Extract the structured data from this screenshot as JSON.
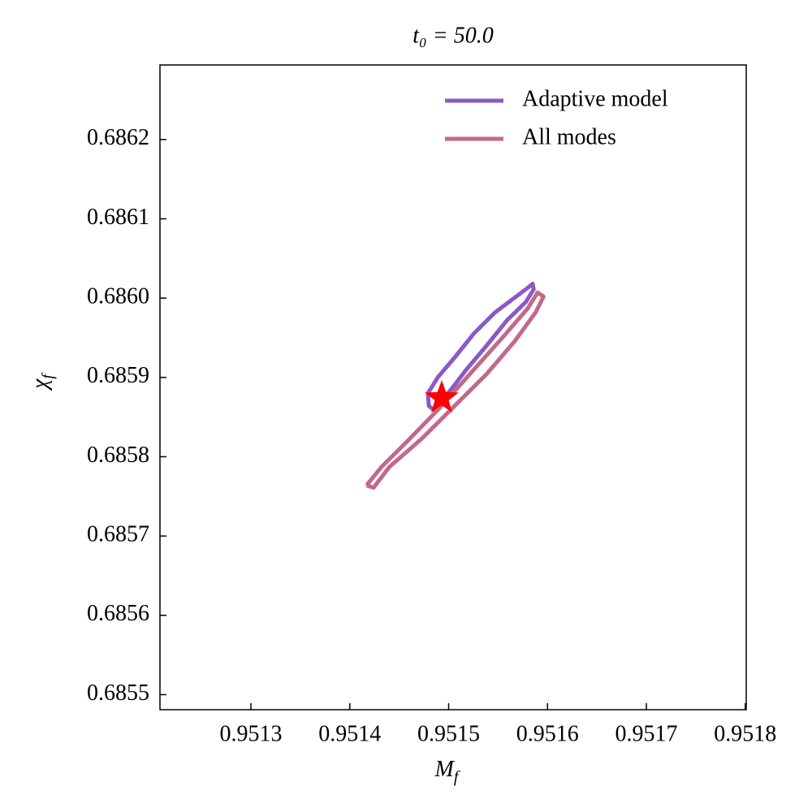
{
  "chart_data": {
    "type": "contour",
    "title": "t₀ = 50.0",
    "x_label": "M",
    "x_label_sub": "f",
    "y_label": "χ",
    "y_label_sub": "f",
    "xlim": [
      0.951208,
      0.951801
    ],
    "ylim": [
      0.685481,
      0.686294
    ],
    "xticks": [
      0.9513,
      0.9514,
      0.9515,
      0.9516,
      0.9517,
      0.9518
    ],
    "yticks": [
      0.6855,
      0.6856,
      0.6857,
      0.6858,
      0.6859,
      {
        "value": 0.686,
        "label": "0.6860"
      },
      0.6861,
      0.6862
    ],
    "legend": "upper right",
    "series": [
      {
        "name": "Adaptive model",
        "color": "#8a5ac6",
        "x": [
          0.951479,
          0.951489,
          0.951506,
          0.951526,
          0.951547,
          0.951563,
          0.95158,
          0.951585,
          0.951586,
          0.951578,
          0.951559,
          0.951539,
          0.951518,
          0.951502,
          0.951485,
          0.95148,
          0.951479
        ],
        "y": [
          0.68588,
          0.6859,
          0.685925,
          0.685956,
          0.685982,
          0.685997,
          0.686013,
          0.686018,
          0.686011,
          0.685995,
          0.685972,
          0.685941,
          0.68591,
          0.685884,
          0.685859,
          0.685864,
          0.68588
        ]
      },
      {
        "name": "All modes",
        "color": "#c2698a",
        "x": [
          0.951417,
          0.951432,
          0.951457,
          0.951489,
          0.951522,
          0.951555,
          0.95158,
          0.95159,
          0.951596,
          0.951588,
          0.951567,
          0.951539,
          0.951506,
          0.951473,
          0.95144,
          0.951424,
          0.951417
        ],
        "y": [
          0.685764,
          0.685787,
          0.685818,
          0.685859,
          0.685905,
          0.685951,
          0.685987,
          0.686007,
          0.686002,
          0.685982,
          0.685946,
          0.685905,
          0.685864,
          0.685823,
          0.685787,
          0.685761,
          0.685764
        ]
      }
    ],
    "marker": {
      "x": 0.951493,
      "y": 0.685874,
      "color": "#ff0000"
    }
  }
}
